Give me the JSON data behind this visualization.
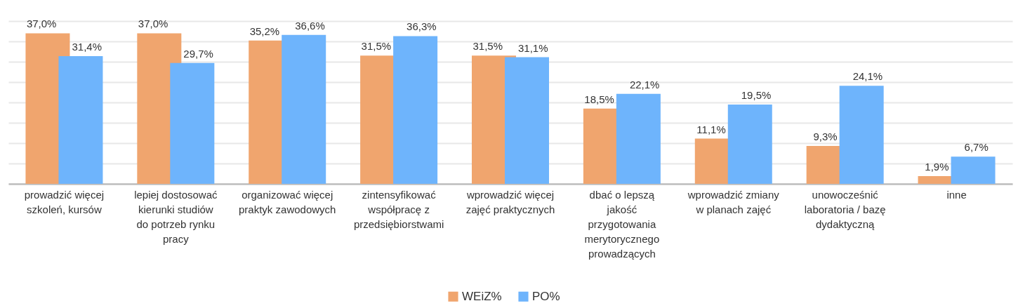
{
  "chart_data": {
    "type": "bar",
    "categories": [
      "prowadzić więcej szkoleń, kursów",
      "lepiej dostosować kierunki studiów do potrzeb rynku pracy",
      "organizować więcej praktyk zawodowych",
      "zintensyfikować współpracę z przedsiębiorstwami",
      "wprowadzić więcej zajęć praktycznych",
      "dbać o lepszą jakość przygotowania merytorycznego prowadzących",
      "wprowadzić zmiany w planach zajęć",
      "unowocześnić laboratoria / bazę dydaktyczną",
      "inne"
    ],
    "series": [
      {
        "name": "WEiZ%",
        "color": "#f0a56e",
        "values": [
          37.0,
          37.0,
          35.2,
          31.5,
          31.5,
          18.5,
          11.1,
          9.3,
          1.9
        ],
        "value_labels": [
          "37,0%",
          "37,0%",
          "35,2%",
          "31,5%",
          "31,5%",
          "18,5%",
          "11,1%",
          "9,3%",
          "1,9%"
        ]
      },
      {
        "name": "PO%",
        "color": "#6eb4fc",
        "values": [
          31.4,
          29.7,
          36.6,
          36.3,
          31.1,
          22.1,
          19.5,
          24.1,
          6.7
        ],
        "value_labels": [
          "31,4%",
          "29,7%",
          "36,6%",
          "36,3%",
          "31,1%",
          "22,1%",
          "19,5%",
          "24,1%",
          "6,7%"
        ]
      }
    ],
    "ylim": [
      0,
      40
    ],
    "yticks": [
      {
        "value": 0,
        "label": null
      },
      {
        "value": 5,
        "label": null
      },
      {
        "value": 10,
        "label": null
      },
      {
        "value": 15,
        "label": null
      },
      {
        "value": 20,
        "label": null
      },
      {
        "value": 25,
        "label": null
      },
      {
        "value": 30,
        "label": null
      },
      {
        "value": 35,
        "label": null
      },
      {
        "value": 40,
        "label": null
      }
    ],
    "grid": "y",
    "legend": "bottom",
    "tick_labels": "x"
  }
}
